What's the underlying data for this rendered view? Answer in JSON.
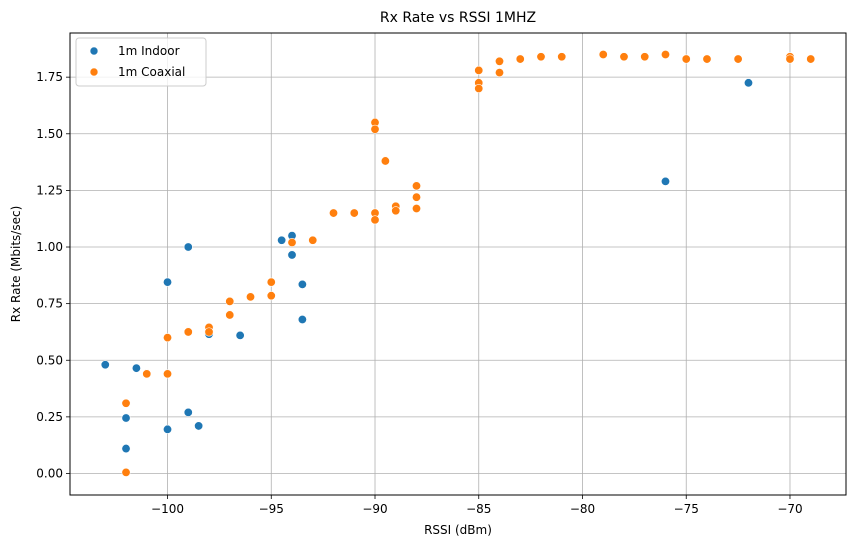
{
  "chart_data": {
    "type": "scatter",
    "title": "Rx Rate vs RSSI 1MHZ",
    "xlabel": "RSSI (dBm)",
    "ylabel": "Rx Rate (Mbits/sec)",
    "xlim": [
      -104.7,
      -67.3
    ],
    "ylim": [
      -0.095,
      1.945
    ],
    "xticks": [
      -100,
      -95,
      -90,
      -85,
      -80,
      -75,
      -70
    ],
    "xtick_labels": [
      "−100",
      "−95",
      "−90",
      "−85",
      "−80",
      "−75",
      "−70"
    ],
    "yticks": [
      0.0,
      0.25,
      0.5,
      0.75,
      1.0,
      1.25,
      1.5,
      1.75
    ],
    "ytick_labels": [
      "0.00",
      "0.25",
      "0.50",
      "0.75",
      "1.00",
      "1.25",
      "1.50",
      "1.75"
    ],
    "grid": true,
    "legend_position": "top-left",
    "series": [
      {
        "name": "1m Indoor",
        "color": "#1f77b4",
        "points": [
          [
            -103,
            0.48
          ],
          [
            -102,
            0.245
          ],
          [
            -102,
            0.11
          ],
          [
            -101.5,
            0.465
          ],
          [
            -100,
            0.845
          ],
          [
            -100,
            0.195
          ],
          [
            -99,
            1.0
          ],
          [
            -99,
            0.27
          ],
          [
            -98.5,
            0.21
          ],
          [
            -98,
            0.615
          ],
          [
            -96.5,
            0.61
          ],
          [
            -94.5,
            1.03
          ],
          [
            -94,
            1.05
          ],
          [
            -94,
            0.965
          ],
          [
            -93.5,
            0.835
          ],
          [
            -93.5,
            0.68
          ],
          [
            -85,
            1.7
          ],
          [
            -76,
            1.29
          ],
          [
            -72,
            1.725
          ]
        ]
      },
      {
        "name": "1m Coaxial",
        "color": "#ff7f0e",
        "points": [
          [
            -102,
            0.31
          ],
          [
            -102,
            0.005
          ],
          [
            -101,
            0.44
          ],
          [
            -100,
            0.6
          ],
          [
            -100,
            0.44
          ],
          [
            -99,
            0.625
          ],
          [
            -98,
            0.645
          ],
          [
            -98,
            0.625
          ],
          [
            -97,
            0.76
          ],
          [
            -97,
            0.7
          ],
          [
            -96,
            0.78
          ],
          [
            -95,
            0.845
          ],
          [
            -95,
            0.785
          ],
          [
            -94,
            1.02
          ],
          [
            -93,
            1.03
          ],
          [
            -92,
            1.15
          ],
          [
            -91,
            1.15
          ],
          [
            -90,
            1.55
          ],
          [
            -90,
            1.52
          ],
          [
            -90,
            1.15
          ],
          [
            -90,
            1.12
          ],
          [
            -89.5,
            1.38
          ],
          [
            -89,
            1.18
          ],
          [
            -89,
            1.16
          ],
          [
            -88,
            1.27
          ],
          [
            -88,
            1.22
          ],
          [
            -88,
            1.17
          ],
          [
            -85,
            1.78
          ],
          [
            -85,
            1.725
          ],
          [
            -85,
            1.7
          ],
          [
            -84,
            1.82
          ],
          [
            -84,
            1.77
          ],
          [
            -83,
            1.83
          ],
          [
            -82,
            1.84
          ],
          [
            -81,
            1.84
          ],
          [
            -79,
            1.85
          ],
          [
            -78,
            1.84
          ],
          [
            -77,
            1.84
          ],
          [
            -76,
            1.85
          ],
          [
            -75,
            1.83
          ],
          [
            -74,
            1.83
          ],
          [
            -72.5,
            1.83
          ],
          [
            -70,
            1.84
          ],
          [
            -70,
            1.83
          ],
          [
            -69,
            1.83
          ]
        ]
      }
    ]
  }
}
